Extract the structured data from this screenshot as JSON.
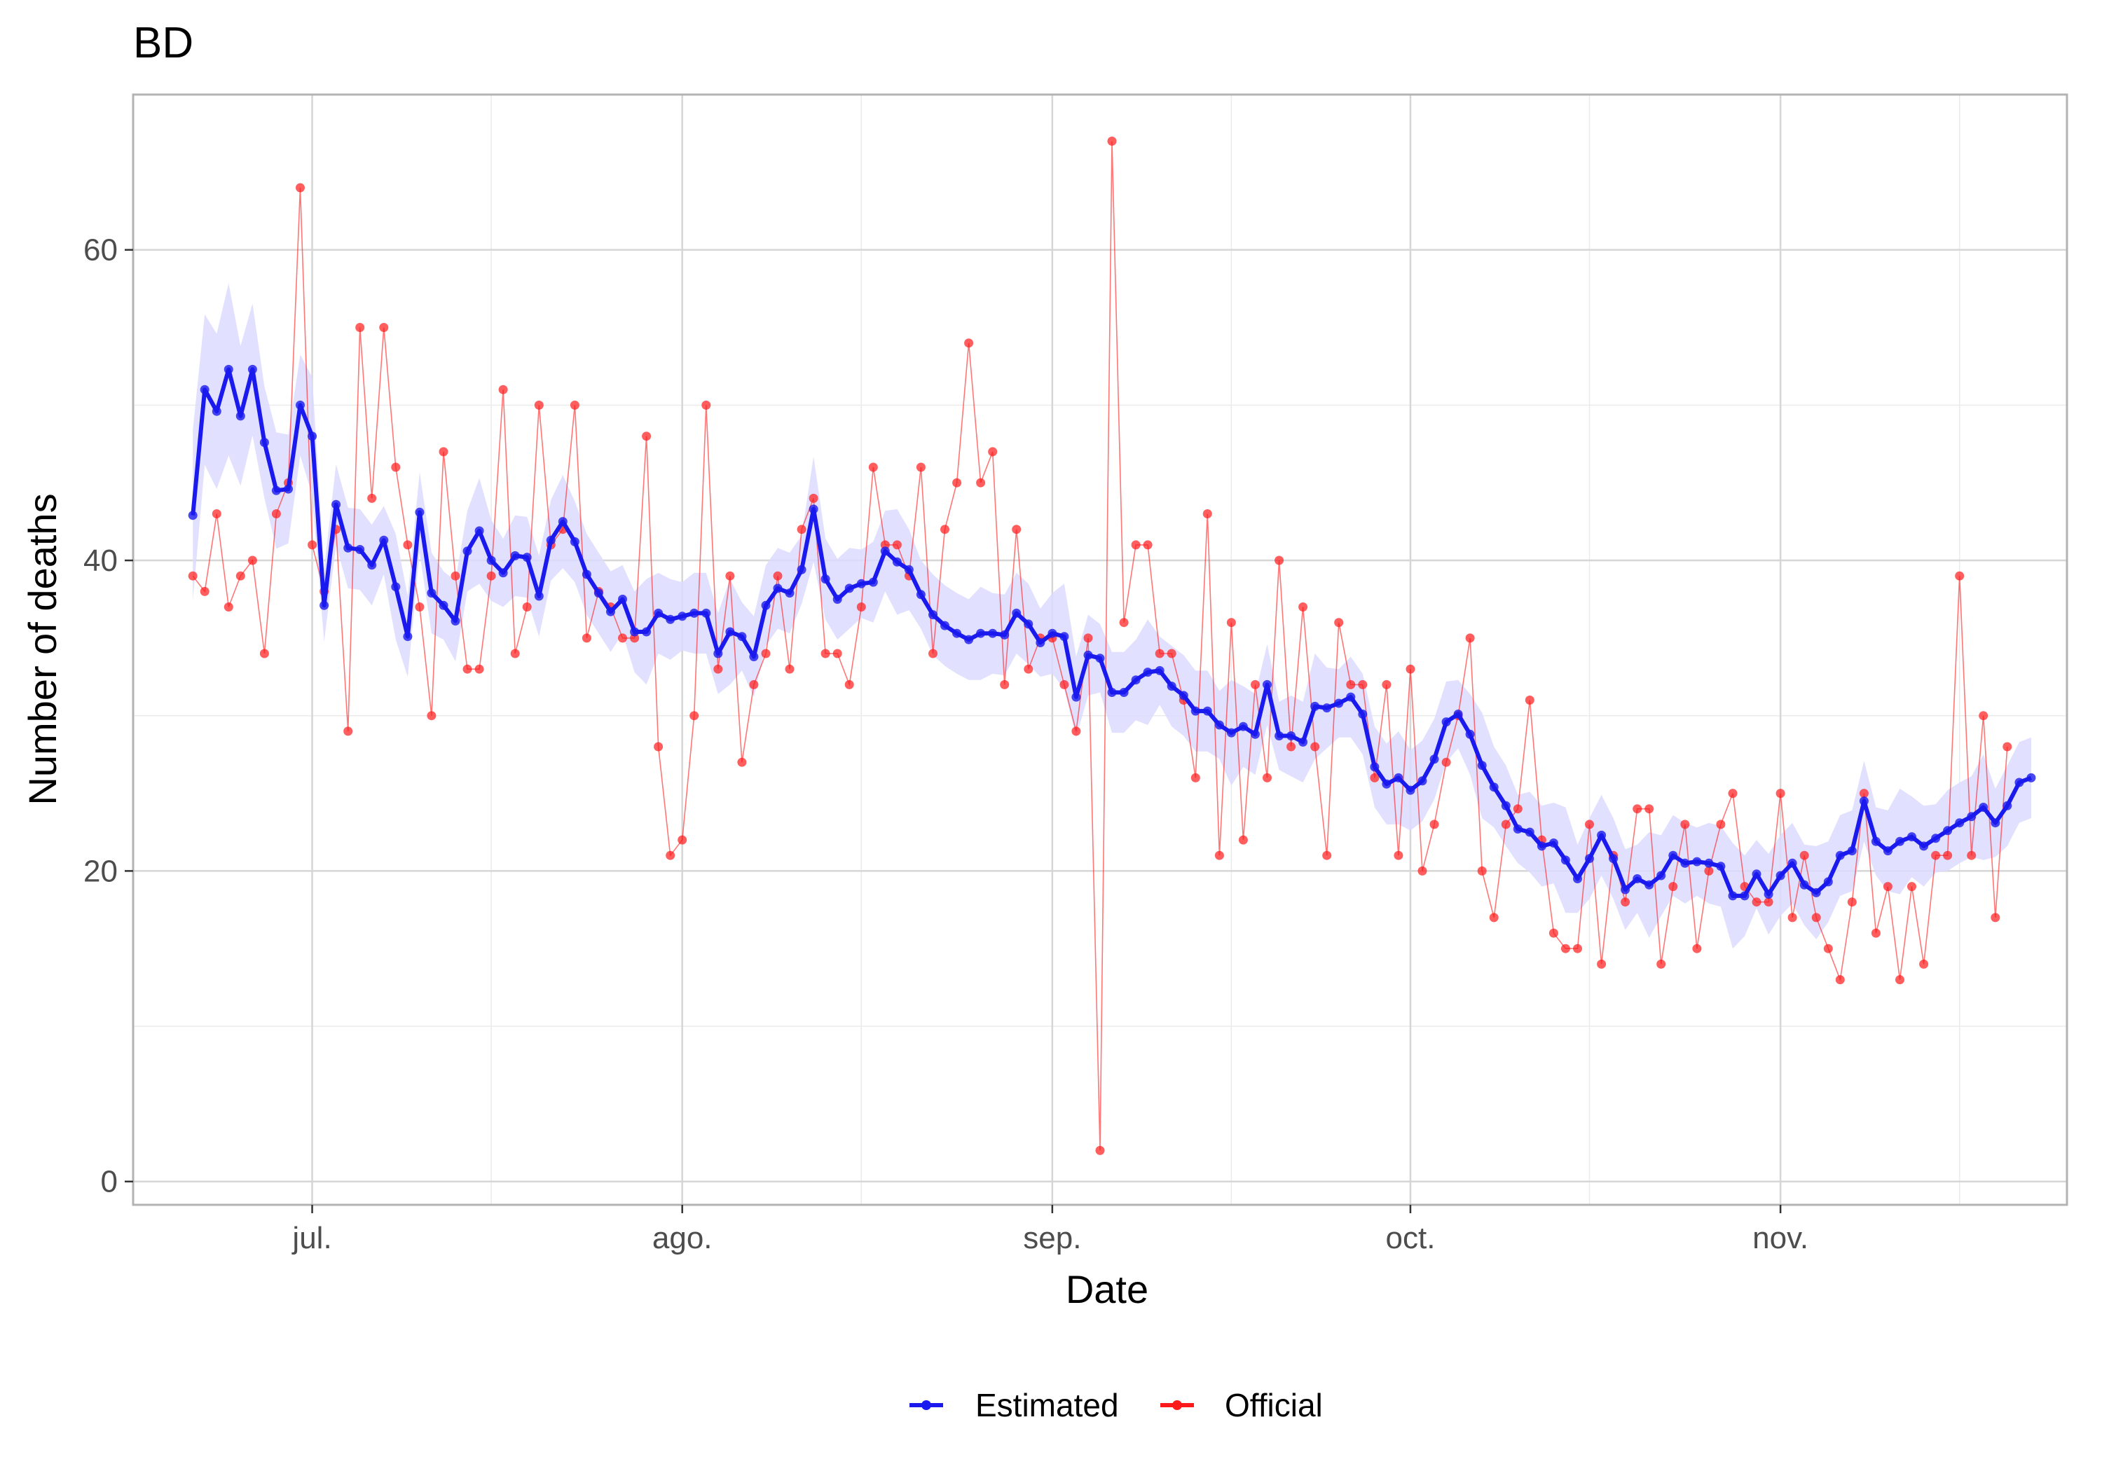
{
  "chart_data": {
    "type": "line",
    "title": "BD",
    "xlabel": "Date",
    "ylabel": "Number of deaths",
    "x_start": "2020-06-21",
    "x_end": "2020-11-19",
    "x_range": [
      "2020-06-16",
      "2020-11-25"
    ],
    "ylim": [
      -1.5,
      70
    ],
    "y_ticks": [
      0,
      20,
      40,
      60
    ],
    "y_tick_labels": [
      "0",
      "20",
      "40",
      "60"
    ],
    "y_minor_ticks": [
      10,
      30,
      50
    ],
    "x_ticks": [
      "2020-07-01",
      "2020-08-01",
      "2020-09-01",
      "2020-10-01",
      "2020-11-01"
    ],
    "x_tick_labels": [
      "jul.",
      "ago.",
      "sep.",
      "oct.",
      "nov."
    ],
    "x_minor_ticks": [
      "2020-06-16",
      "2020-07-16",
      "2020-08-16",
      "2020-09-16",
      "2020-10-16",
      "2020-11-16"
    ],
    "grid": true,
    "legend_position": "bottom",
    "series": [
      {
        "name": "Estimated",
        "color": "#1a1aee",
        "band_color": "#dcdcff",
        "values": [
          42.9,
          51,
          49.6,
          52.3,
          49.3,
          52.3,
          47.6,
          44.5,
          44.6,
          50,
          48,
          37.1,
          43.6,
          40.8,
          40.7,
          39.7,
          41.3,
          38.3,
          35.1,
          43.1,
          37.9,
          37.1,
          36.1,
          40.6,
          41.9,
          40,
          39.2,
          40.3,
          40.2,
          37.7,
          41.3,
          42.5,
          41.2,
          39.1,
          37.9,
          36.7,
          37.5,
          35.4,
          35.4,
          36.6,
          36.2,
          36.4,
          36.6,
          36.6,
          34,
          35.4,
          35.1,
          33.8,
          37.1,
          38.2,
          37.9,
          39.4,
          43.3,
          38.8,
          37.5,
          38.2,
          38.5,
          38.6,
          40.6,
          39.9,
          39.4,
          37.8,
          36.5,
          35.8,
          35.3,
          34.9,
          35.3,
          35.3,
          35.2,
          36.6,
          35.9,
          34.7,
          35.3,
          35.1,
          31.2,
          33.9,
          33.7,
          31.5,
          31.5,
          32.3,
          32.8,
          32.9,
          31.9,
          31.3,
          30.3,
          30.3,
          29.4,
          28.9,
          29.3,
          28.8,
          32,
          28.7,
          28.7,
          28.3,
          30.6,
          30.5,
          30.8,
          31.2,
          30.1,
          26.7,
          25.6,
          26,
          25.2,
          25.8,
          27.2,
          29.6,
          30.1,
          28.8,
          26.8,
          25.4,
          24.2,
          22.7,
          22.5,
          21.6,
          21.8,
          20.7,
          19.5,
          20.8,
          22.3,
          20.8,
          18.8,
          19.5,
          19.1,
          19.7,
          21,
          20.5,
          20.6,
          20.5,
          20.3,
          18.4,
          18.4,
          19.8,
          18.5,
          19.7,
          20.5,
          19.1,
          18.6,
          19.3,
          21,
          21.3,
          24.5,
          21.9,
          21.3,
          21.9,
          22.2,
          21.6,
          22.1,
          22.6,
          23.1,
          23.5,
          24.1,
          23.1,
          24.2,
          25.7,
          26
        ]
      },
      {
        "name": "Official",
        "color": "#ff1a1a",
        "values": [
          39,
          38,
          43,
          37,
          39,
          40,
          34,
          43,
          45,
          64,
          41,
          38,
          42,
          29,
          55,
          44,
          55,
          46,
          41,
          37,
          30,
          47,
          39,
          33,
          33,
          39,
          51,
          34,
          37,
          50,
          41,
          42,
          50,
          35,
          38,
          37,
          35,
          35,
          48,
          28,
          21,
          22,
          30,
          50,
          33,
          39,
          27,
          32,
          34,
          39,
          33,
          42,
          44,
          34,
          34,
          32,
          37,
          46,
          41,
          41,
          39,
          46,
          34,
          42,
          45,
          54,
          45,
          47,
          32,
          42,
          33,
          35,
          35,
          32,
          29,
          35,
          2,
          67,
          36,
          41,
          41,
          34,
          34,
          31,
          26,
          43,
          21,
          36,
          22,
          32,
          26,
          40,
          28,
          37,
          28,
          21,
          36,
          32,
          32,
          26,
          32,
          21,
          33,
          20,
          23,
          27,
          30,
          35,
          20,
          17,
          23,
          24,
          31,
          22,
          16,
          15,
          15,
          23,
          14,
          21,
          18,
          24,
          24,
          14,
          19,
          23,
          15,
          20,
          23,
          25,
          19,
          18,
          18,
          25,
          17,
          21,
          17,
          15,
          13,
          18,
          25,
          16,
          19,
          13,
          19,
          14,
          21,
          21,
          39,
          21,
          30,
          17,
          28
        ]
      }
    ]
  }
}
